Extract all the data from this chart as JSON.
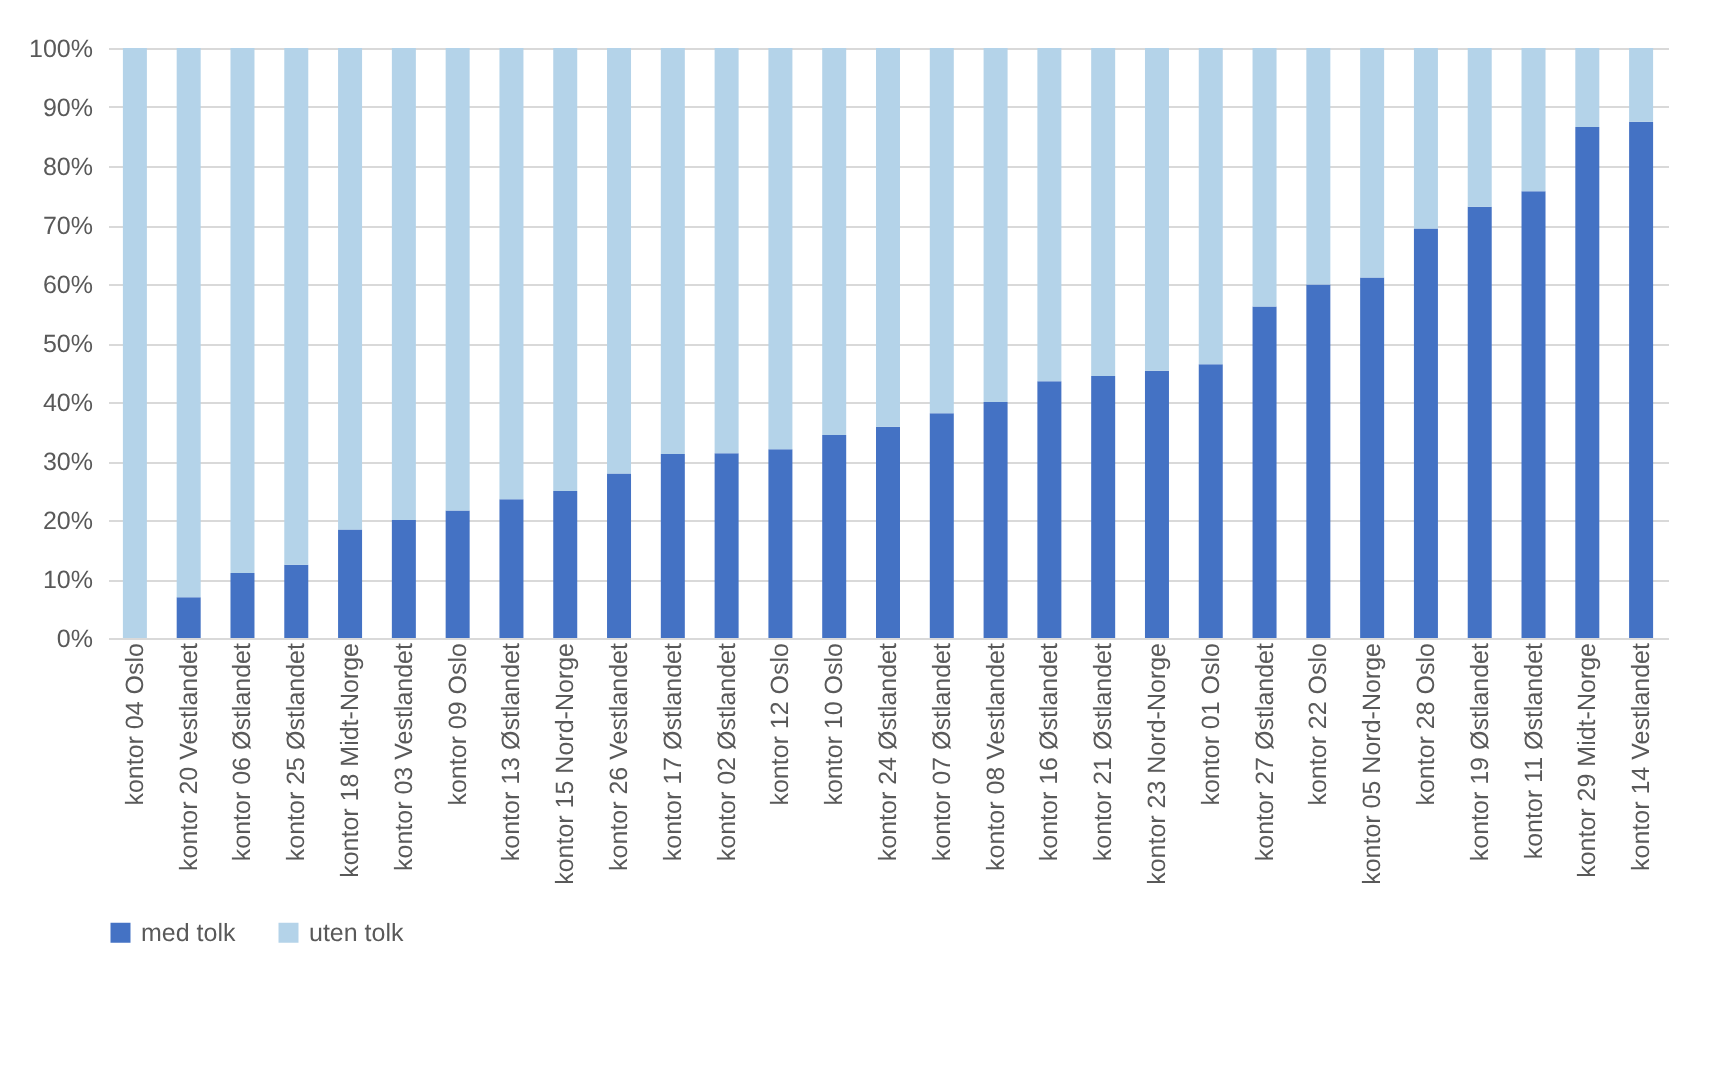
{
  "chart_data": {
    "type": "bar",
    "stacked": true,
    "categories": [
      "kontor 04 Oslo",
      "kontor 20 Vestlandet",
      "kontor 06 Østlandet",
      "kontor 25 Østlandet",
      "kontor 18 Midt-Norge",
      "kontor 03 Vestlandet",
      "kontor 09 Oslo",
      "kontor 13 Østlandet",
      "kontor 15 Nord-Norge",
      "kontor 26 Vestlandet",
      "kontor 17 Østlandet",
      "kontor 02 Østlandet",
      "kontor 12 Oslo",
      "kontor 10 Oslo",
      "kontor 24 Østlandet",
      "kontor 07 Østlandet",
      "kontor 08 Vestlandet",
      "kontor 16 Østlandet",
      "kontor 21 Østlandet",
      "kontor 23 Nord-Norge",
      "kontor 01 Oslo",
      "kontor 27 Østlandet",
      "kontor 22 Oslo",
      "kontor 05 Nord-Norge",
      "kontor 28 Oslo",
      "kontor 19 Østlandet",
      "kontor 11 Østlandet",
      "kontor 29 Midt-Norge",
      "kontor 14 Vestlandet"
    ],
    "series": [
      {
        "name": "med tolk",
        "color": "#4472c4",
        "values": [
          0,
          6.9,
          11,
          12.4,
          18.4,
          20,
          21.6,
          23.5,
          24.9,
          27.9,
          31.2,
          31.3,
          32,
          34.4,
          35.8,
          38.1,
          40,
          43.5,
          44.4,
          45.3,
          46.4,
          56.2,
          59.9,
          61.1,
          69.4,
          73.1,
          75.7,
          86.6,
          87.5
        ]
      },
      {
        "name": "uten tolk",
        "color": "#b4d3e9",
        "values": [
          100,
          93.1,
          89,
          87.6,
          81.6,
          80,
          78.4,
          76.5,
          75.1,
          72.1,
          68.8,
          68.7,
          68,
          65.6,
          64.2,
          61.9,
          60,
          56.5,
          55.6,
          54.7,
          53.6,
          43.8,
          40.1,
          38.9,
          30.6,
          26.9,
          24.3,
          13.4,
          12.5
        ]
      }
    ],
    "ylim": [
      0,
      100
    ],
    "yticks": [
      {
        "value": 0,
        "label": "0%"
      },
      {
        "value": 10,
        "label": "10%"
      },
      {
        "value": 20,
        "label": "20%"
      },
      {
        "value": 30,
        "label": "30%"
      },
      {
        "value": 40,
        "label": "40%"
      },
      {
        "value": 50,
        "label": "50%"
      },
      {
        "value": 60,
        "label": "60%"
      },
      {
        "value": 70,
        "label": "70%"
      },
      {
        "value": 80,
        "label": "80%"
      },
      {
        "value": 90,
        "label": "90%"
      },
      {
        "value": 100,
        "label": "100%"
      }
    ],
    "grid": "y",
    "legend": "bottom"
  }
}
